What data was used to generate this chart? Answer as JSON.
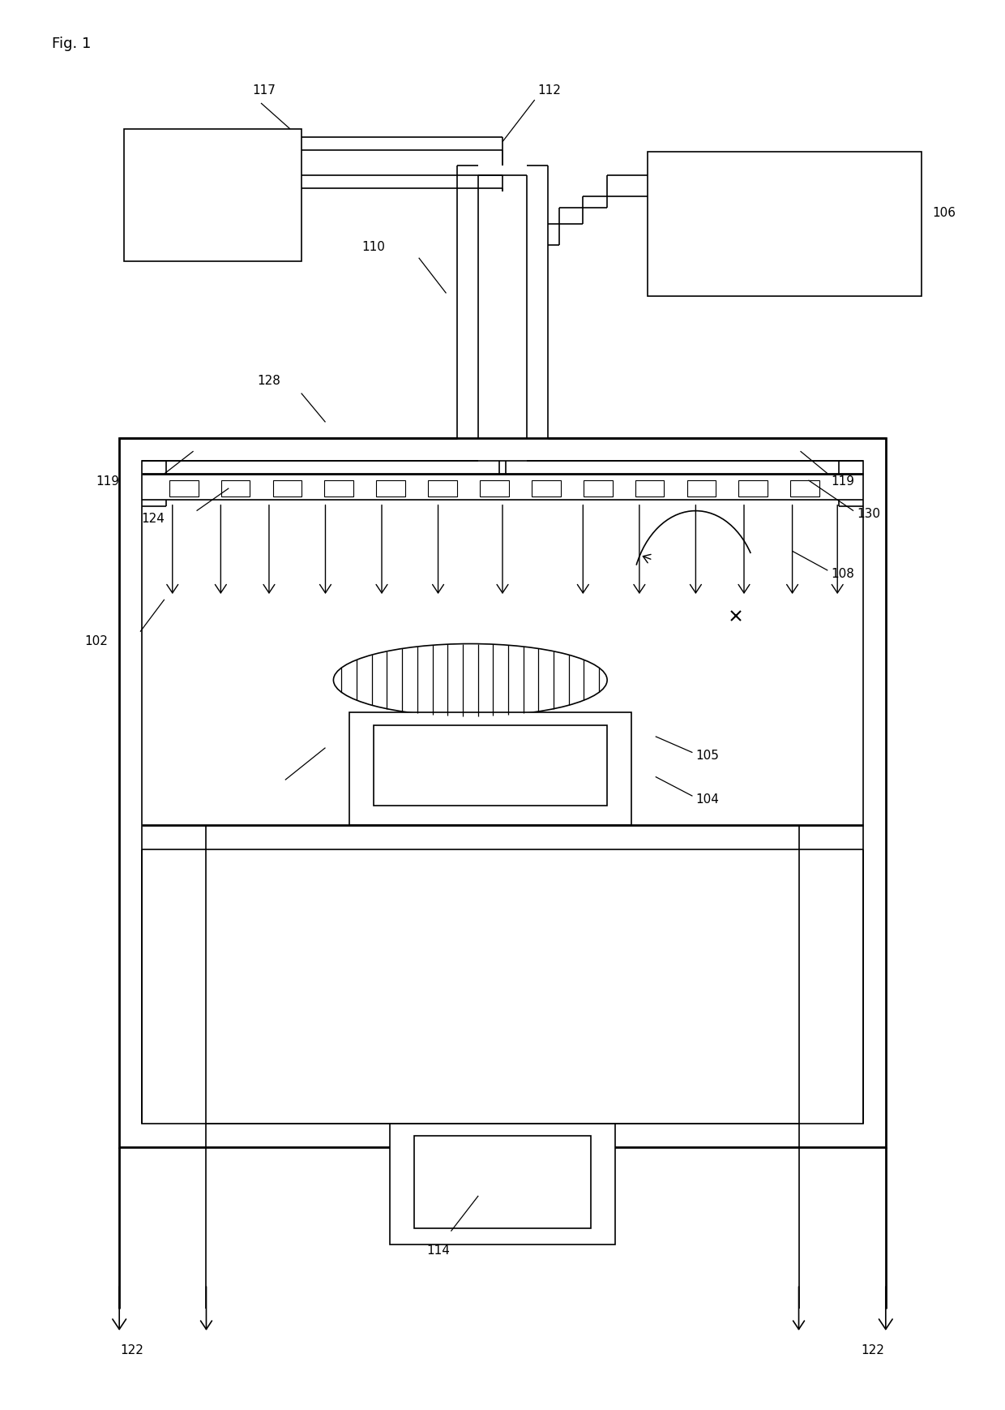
{
  "fig_label": "Fig. 1",
  "bg": "#ffffff",
  "lc": "#000000",
  "figsize": [
    12.4,
    17.38
  ],
  "dpi": 100
}
